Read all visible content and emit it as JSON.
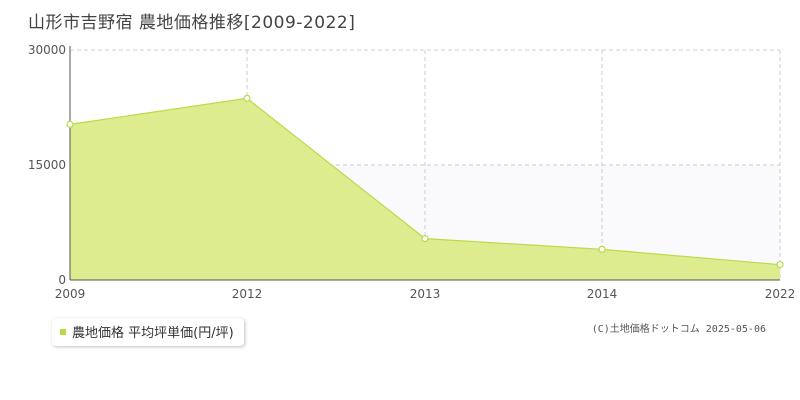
{
  "page_title": "山形市吉野宿 農地価格推移[2009-2022]",
  "legend_label": "農地価格 平均坪単価(円/坪)",
  "copyright": "(C)土地価格ドットコム 2025-05-06",
  "colors": {
    "fill": "#dcec8f",
    "line": "#b8dc47",
    "marker": "#ffffff",
    "plot_bg": "#ffffff",
    "band": "#faf9fc",
    "grid": "#cccccc",
    "legend_swatch": "#b8dc47"
  },
  "chart_data": {
    "type": "area",
    "title": "山形市吉野宿 農地価格推移[2009-2022]",
    "x": [
      "2009",
      "2012",
      "2013",
      "2014",
      "2022"
    ],
    "series": [
      {
        "name": "農地価格 平均坪単価(円/坪)",
        "values": [
          20300,
          23700,
          5400,
          4000,
          2000
        ]
      }
    ],
    "yticks": [
      "0",
      "15000",
      "30000"
    ],
    "ylim": [
      0,
      30000
    ],
    "xlabel": "",
    "ylabel": "",
    "grid": true,
    "legend": "bottom-left"
  }
}
